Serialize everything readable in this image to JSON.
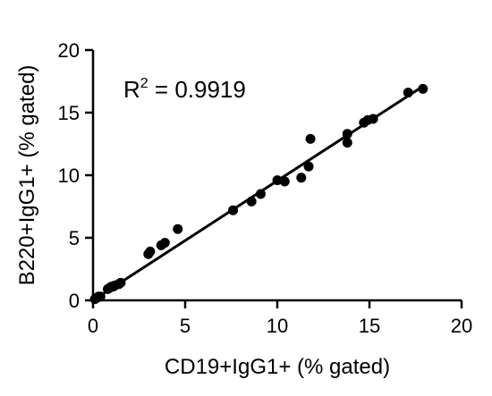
{
  "chart_data": {
    "type": "scatter",
    "xlabel": "CD19+IgG1+ (% gated)",
    "ylabel": "B220+IgG1+ (% gated)",
    "xlim": [
      0,
      20
    ],
    "ylim": [
      0,
      20
    ],
    "xticks": [
      "0",
      "5",
      "10",
      "15",
      "20"
    ],
    "yticks": [
      "0",
      "5",
      "10",
      "15",
      "20"
    ],
    "annotation": {
      "prefix": "R",
      "superscript": "2",
      "suffix": " = 0.9919"
    },
    "grid": false,
    "series": [
      {
        "points": [
          [
            0.1,
            0.1
          ],
          [
            0.2,
            0.2
          ],
          [
            0.3,
            0.3
          ],
          [
            0.4,
            0.3
          ],
          [
            0.8,
            0.9
          ],
          [
            0.9,
            1.0
          ],
          [
            1.0,
            1.1
          ],
          [
            1.1,
            1.1
          ],
          [
            1.2,
            1.2
          ],
          [
            1.4,
            1.3
          ],
          [
            1.5,
            1.4
          ],
          [
            3.0,
            3.7
          ],
          [
            3.1,
            3.9
          ],
          [
            3.7,
            4.4
          ],
          [
            3.9,
            4.6
          ],
          [
            4.6,
            5.7
          ],
          [
            7.6,
            7.2
          ],
          [
            8.6,
            7.9
          ],
          [
            9.1,
            8.5
          ],
          [
            10.0,
            9.6
          ],
          [
            10.4,
            9.5
          ],
          [
            11.3,
            9.8
          ],
          [
            11.7,
            10.7
          ],
          [
            11.8,
            12.9
          ],
          [
            13.8,
            12.6
          ],
          [
            13.8,
            13.3
          ],
          [
            14.7,
            14.2
          ],
          [
            14.9,
            14.4
          ],
          [
            15.2,
            14.5
          ],
          [
            17.1,
            16.6
          ],
          [
            17.9,
            16.9
          ]
        ],
        "fit_line": {
          "x": [
            0,
            18
          ],
          "y": [
            0,
            17.2
          ]
        },
        "color": "#000000"
      }
    ]
  }
}
